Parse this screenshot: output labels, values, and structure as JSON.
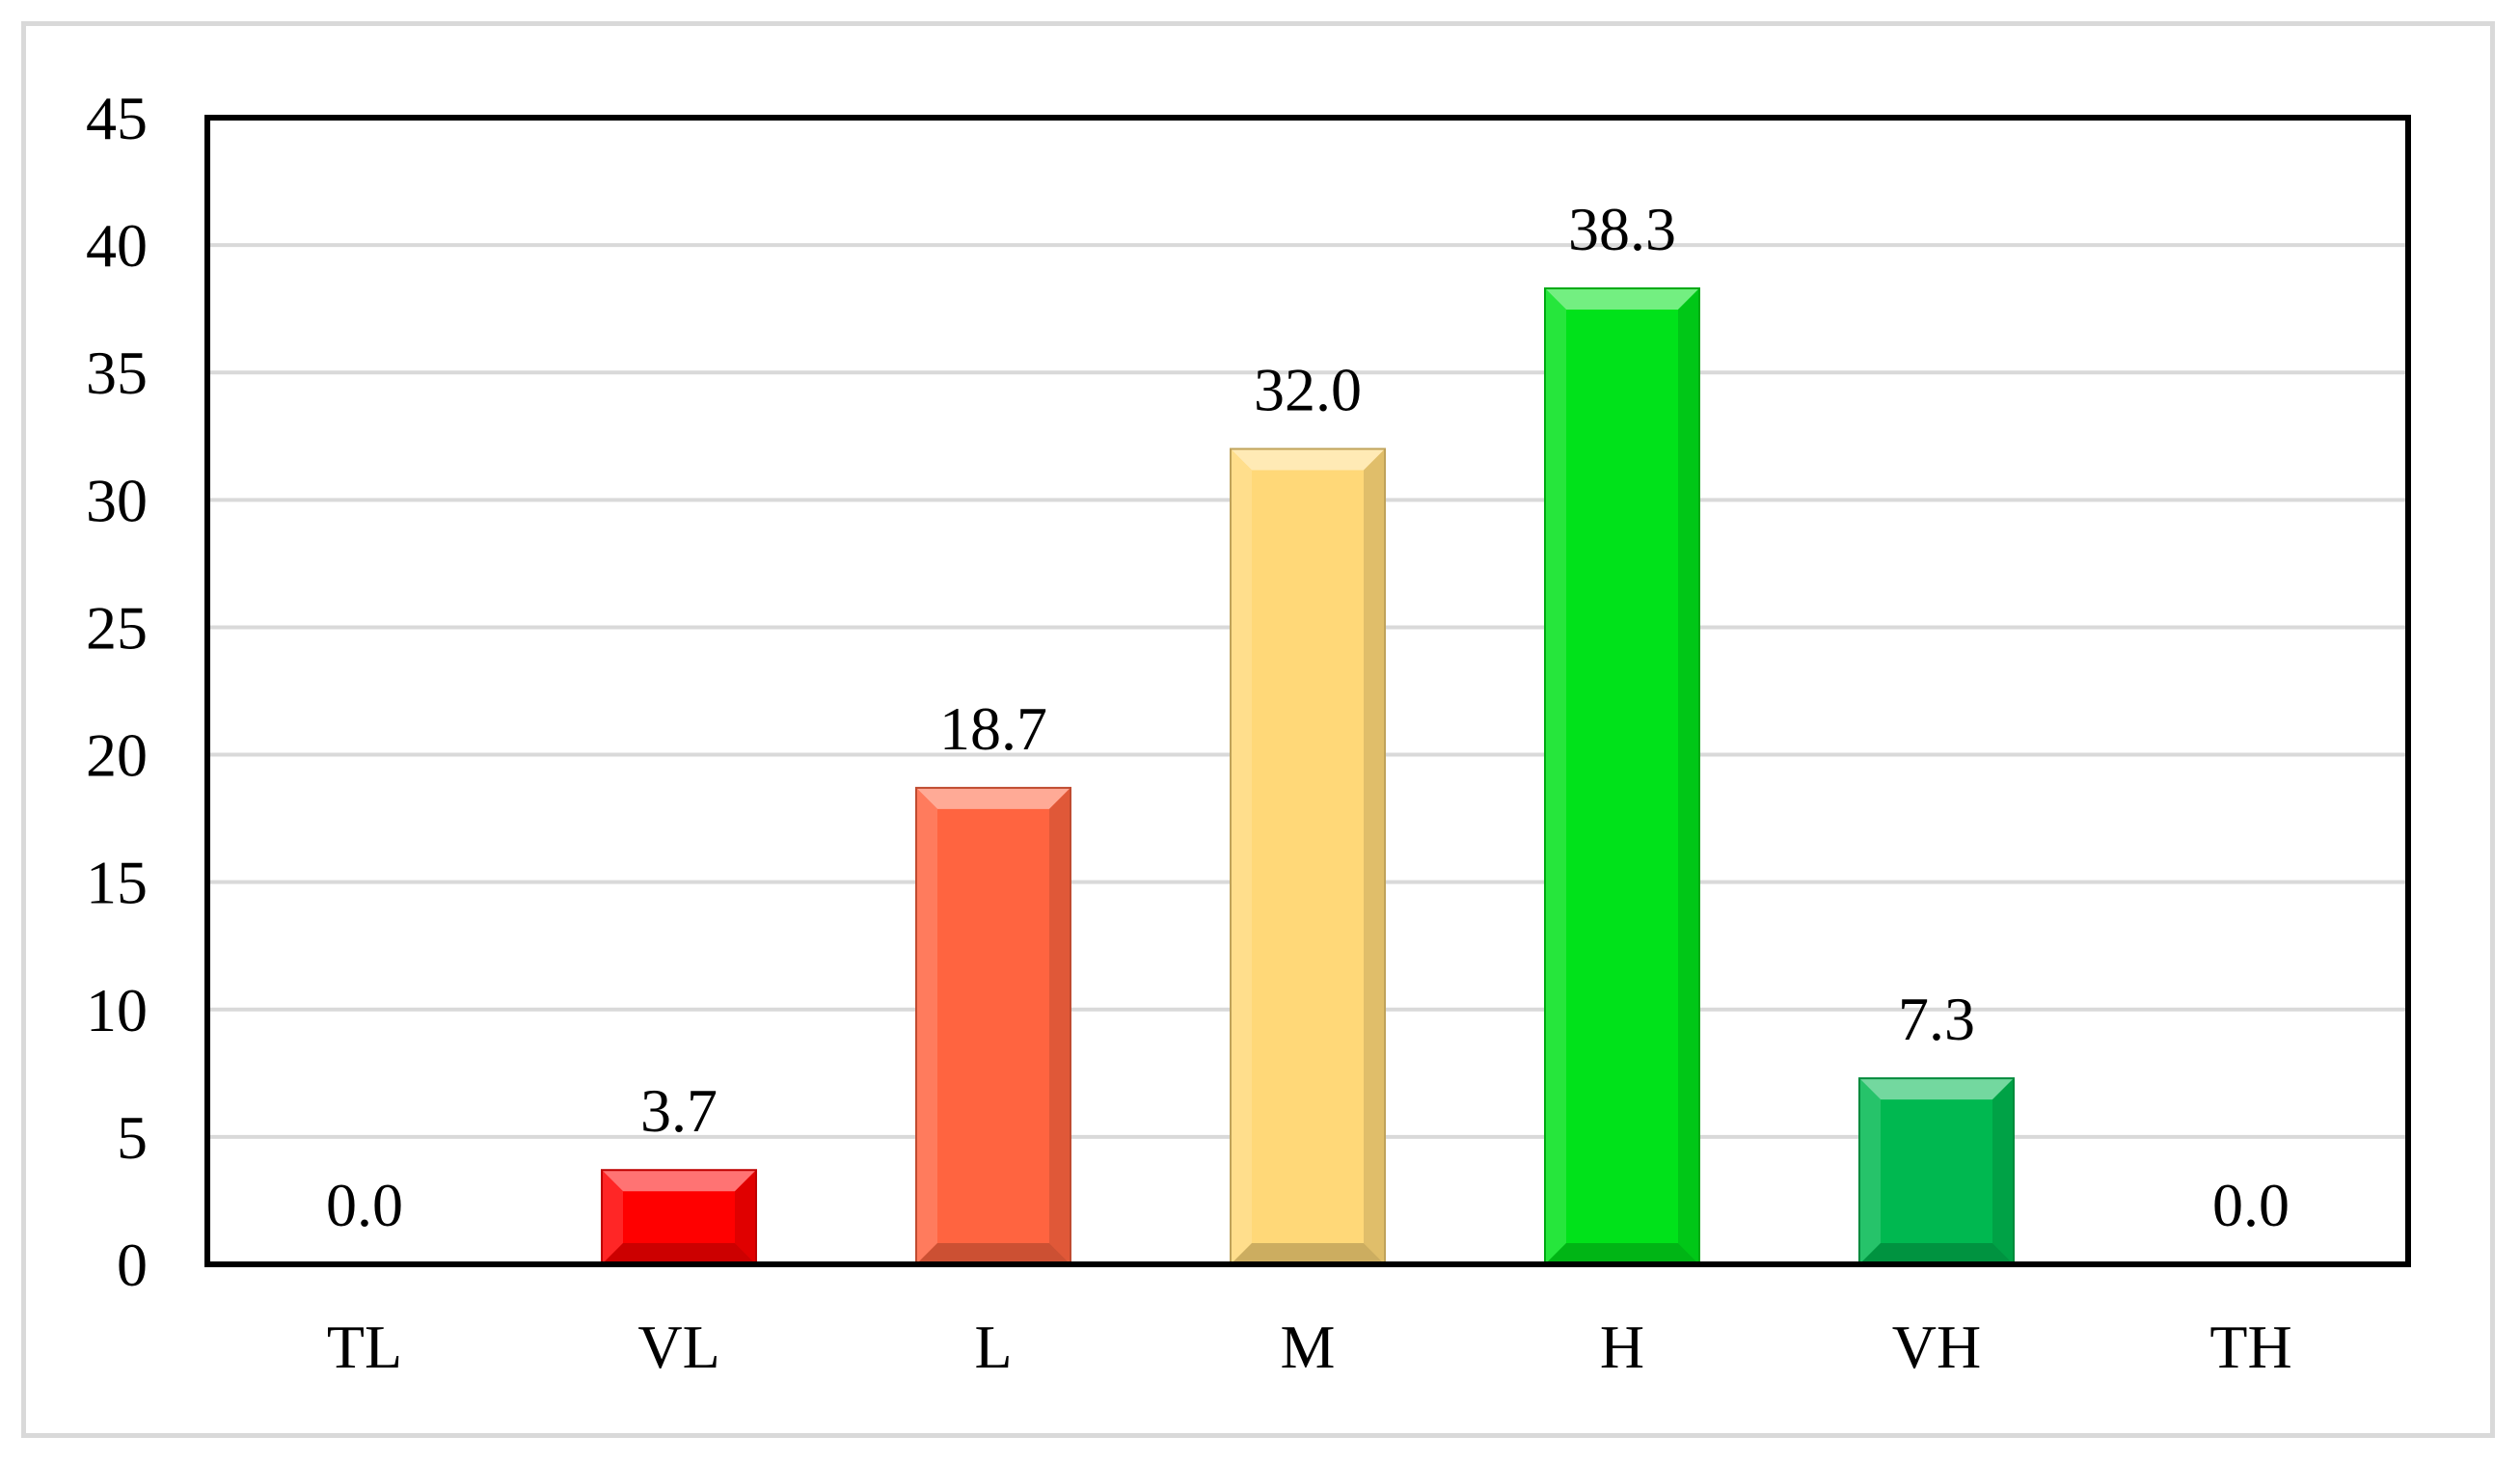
{
  "chart_data": {
    "type": "bar",
    "title": "",
    "xlabel": "",
    "ylabel": "",
    "categories": [
      "TL",
      "VL",
      "L",
      "M",
      "H",
      "VH",
      "TH"
    ],
    "values": [
      0.0,
      3.7,
      18.7,
      32.0,
      38.3,
      7.3,
      0.0
    ],
    "value_labels": [
      "0.0",
      "3.7",
      "18.7",
      "32.0",
      "38.3",
      "7.3",
      "0.0"
    ],
    "bar_colors": [
      "#ff0000",
      "#ff0000",
      "#ff6440",
      "#ffd878",
      "#00e21a",
      "#00b850",
      "#00b850"
    ],
    "ylim": [
      0,
      45
    ],
    "yticks": [
      0,
      5,
      10,
      15,
      20,
      25,
      30,
      35,
      40,
      45
    ],
    "grid": true,
    "legend": "none"
  }
}
